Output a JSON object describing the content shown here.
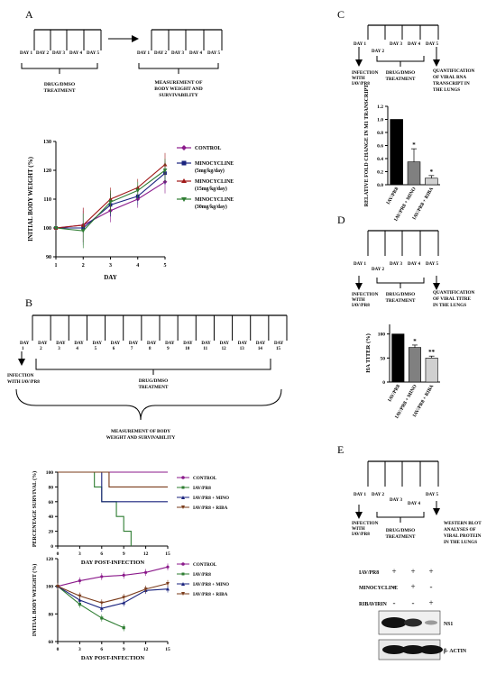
{
  "panels": {
    "A": {
      "letter": "A",
      "timeline1": {
        "days": [
          "DAY 1",
          "DAY 2",
          "DAY 3",
          "DAY 4",
          "DAY 5"
        ],
        "label": [
          "DRUG/DMSO",
          "TREATMENT"
        ]
      },
      "timeline2": {
        "days": [
          "DAY 1",
          "DAY 2",
          "DAY 3",
          "DAY 4",
          "DAY 5"
        ],
        "label": [
          "MEASUREMENT OF",
          "BODY WEIGHT AND",
          "SURVIVABILITY"
        ]
      },
      "legend": [
        "CONTROL",
        "MINOCYCLINE (5mg/kg/day)",
        "MINOCYCLINE (15mg/kg/day)",
        "MINOCYCLINE (30mg/kg/day)"
      ]
    },
    "B": {
      "letter": "B",
      "days": [
        "DAY 1",
        "DAY 2",
        "DAY 3",
        "DAY 4",
        "DAY 5",
        "DAY 6",
        "DAY 7",
        "DAY 8",
        "DAY 9",
        "DAY 10",
        "DAY 11",
        "DAY 12",
        "DAY 13",
        "DAY 14",
        "DAY 15"
      ],
      "infection": [
        "INFECTION",
        "WITH IAV/PR8"
      ],
      "treatment": [
        "DRUG/DMSO",
        "TREATMENT"
      ],
      "measurement": [
        "MEASUREMENT OF BODY",
        "WEIGHT AND SURVIVABILITY"
      ],
      "legend": [
        "CONTROL",
        "IAV/PR8",
        "IAV/PR8 + MINO",
        "IAV/PR8 + RIBA"
      ]
    },
    "C": {
      "letter": "C",
      "days": [
        "DAY 1",
        "DAY 2",
        "DAY 3",
        "DAY 4",
        "DAY 5"
      ],
      "infection": [
        "INFECTION",
        "WITH",
        "IAV/PR8"
      ],
      "treatment": [
        "DRUG/DMSO",
        "TREATMENT"
      ],
      "quant": [
        "QUANTIFICATION",
        "OF VIRAL RNA",
        "TRANSCRIPT IN",
        "THE LUNGS"
      ]
    },
    "D": {
      "letter": "D",
      "days": [
        "DAY 1",
        "DAY 2",
        "DAY 3",
        "DAY 4",
        "DAY 5"
      ],
      "infection": [
        "INFECTION",
        "WITH",
        "IAV/PR8"
      ],
      "treatment": [
        "DRUG/DMSO",
        "TREATMENT"
      ],
      "quant": [
        "QUANTIFICATION",
        "OF VIRAL TITRE",
        "IN THE LUNGS"
      ]
    },
    "E": {
      "letter": "E",
      "days": [
        "DAY 1",
        "DAY 2",
        "DAY 3",
        "DAY 4",
        "DAY 5"
      ],
      "infection": [
        "INFECTION",
        "WITH",
        "IAV/PR8"
      ],
      "treatment": [
        "DRUG/DMSO",
        "TREATMENT"
      ],
      "quant": [
        "WESTERN BLOT",
        "ANALYSES OF",
        "VIRAL PROTEIN",
        "IN THE LUNGS"
      ],
      "rows": [
        "IAV/PR8",
        "MINOCYCLINE",
        "RIBAVIRIN"
      ],
      "signs": [
        [
          "+",
          "+",
          "+"
        ],
        [
          "-",
          "+",
          "-"
        ],
        [
          "-",
          "-",
          "+"
        ]
      ],
      "bands": [
        "NS1",
        "β- ACTIN"
      ]
    }
  },
  "chart_data": [
    {
      "id": "A-bodyweight",
      "type": "line",
      "xlabel": "DAY",
      "ylabel": "INITIAL BODY WEIGHT (%)",
      "x": [
        1,
        2,
        3,
        4,
        5
      ],
      "xlim": [
        1,
        5
      ],
      "ylim": [
        90,
        130
      ],
      "yticks": [
        90,
        100,
        110,
        120,
        130
      ],
      "series": [
        {
          "name": "CONTROL",
          "color": "#8b1a8b",
          "marker": "diamond",
          "values": [
            100,
            101,
            106,
            110,
            116
          ]
        },
        {
          "name": "MINOCYCLINE (5mg/kg/day)",
          "color": "#1a237e",
          "marker": "square",
          "values": [
            100,
            100,
            108,
            111,
            119
          ]
        },
        {
          "name": "MINOCYCLINE (15mg/kg/day)",
          "color": "#a01818",
          "marker": "triangle",
          "values": [
            100,
            101,
            110,
            114,
            122
          ]
        },
        {
          "name": "MINOCYCLINE (30mg/kg/day)",
          "color": "#2e7d32",
          "marker": "triangle-down",
          "values": [
            100,
            99,
            109,
            113,
            120
          ]
        }
      ]
    },
    {
      "id": "B-survival",
      "type": "line",
      "xlabel": "DAY POST-INFECTION",
      "ylabel": "PERCENTAGE SURVIVAL (%)",
      "xlim": [
        0,
        15
      ],
      "ylim": [
        0,
        100
      ],
      "xticks": [
        0,
        3,
        6,
        9,
        12,
        15
      ],
      "yticks": [
        0,
        20,
        40,
        60,
        80,
        100
      ],
      "series": [
        {
          "name": "CONTROL",
          "color": "#8b1a8b",
          "points": [
            [
              0,
              100
            ],
            [
              15,
              100
            ]
          ]
        },
        {
          "name": "IAV/PR8",
          "color": "#2e7d32",
          "points": [
            [
              0,
              100
            ],
            [
              5,
              100
            ],
            [
              5,
              80
            ],
            [
              6,
              80
            ],
            [
              6,
              60
            ],
            [
              8,
              60
            ],
            [
              8,
              40
            ],
            [
              9,
              40
            ],
            [
              9,
              20
            ],
            [
              10,
              20
            ],
            [
              10,
              0
            ]
          ]
        },
        {
          "name": "IAV/PR8 + MINO",
          "color": "#1a237e",
          "points": [
            [
              0,
              100
            ],
            [
              6,
              100
            ],
            [
              6,
              60
            ],
            [
              15,
              60
            ]
          ]
        },
        {
          "name": "IAV/PR8 + RIBA",
          "color": "#7a3b1a",
          "points": [
            [
              0,
              100
            ],
            [
              7,
              100
            ],
            [
              7,
              80
            ],
            [
              15,
              80
            ]
          ]
        }
      ]
    },
    {
      "id": "B-bodyweight",
      "type": "line",
      "xlabel": "DAY POST-INFECTION",
      "ylabel": "INITIAL BODY WEIGHT (%)",
      "xlim": [
        0,
        15
      ],
      "ylim": [
        60,
        120
      ],
      "xticks": [
        0,
        3,
        6,
        9,
        12,
        15
      ],
      "yticks": [
        60,
        80,
        100,
        120
      ],
      "series": [
        {
          "name": "CONTROL",
          "color": "#8b1a8b",
          "x": [
            0,
            3,
            6,
            9,
            12,
            15
          ],
          "values": [
            100,
            104,
            107,
            108,
            110,
            114
          ]
        },
        {
          "name": "IAV/PR8",
          "color": "#2e7d32",
          "x": [
            0,
            3,
            6,
            9
          ],
          "values": [
            100,
            87,
            77,
            70
          ]
        },
        {
          "name": "IAV/PR8 + MINO",
          "color": "#1a237e",
          "x": [
            0,
            3,
            6,
            9,
            12,
            15
          ],
          "values": [
            100,
            90,
            84,
            88,
            97,
            98
          ]
        },
        {
          "name": "IAV/PR8 + RIBA",
          "color": "#7a3b1a",
          "x": [
            0,
            3,
            6,
            9,
            12,
            15
          ],
          "values": [
            100,
            93,
            88,
            92,
            98,
            102
          ]
        }
      ]
    },
    {
      "id": "C-rna",
      "type": "bar",
      "ylabel": "RELATIVE FOLD CHANGE IN M1 TRANSCRIPT",
      "categories": [
        "IAV/PR8",
        "IAV/PR8 + MINO",
        "IAV/PR8 + RIBA"
      ],
      "values": [
        1.0,
        0.35,
        0.1
      ],
      "errors": [
        0,
        0.2,
        0.04
      ],
      "sig": [
        "",
        "*",
        "*"
      ],
      "colors": [
        "#000000",
        "#808080",
        "#d0d0d0"
      ],
      "ylim": [
        0,
        1.2
      ],
      "yticks": [
        0,
        0.2,
        0.4,
        0.6,
        0.8,
        1.0,
        1.2
      ]
    },
    {
      "id": "D-titre",
      "type": "bar",
      "ylabel": "HA TITER (%)",
      "categories": [
        "IAV/PR8",
        "IAV/PR8 + MINO",
        "IAV/PR8 + RIBA"
      ],
      "values": [
        100,
        72,
        50
      ],
      "errors": [
        0,
        5,
        4
      ],
      "sig": [
        "",
        "*",
        "**"
      ],
      "colors": [
        "#000000",
        "#808080",
        "#d0d0d0"
      ],
      "ylim": [
        0,
        120
      ],
      "yticks": [
        0,
        50,
        100
      ]
    }
  ]
}
